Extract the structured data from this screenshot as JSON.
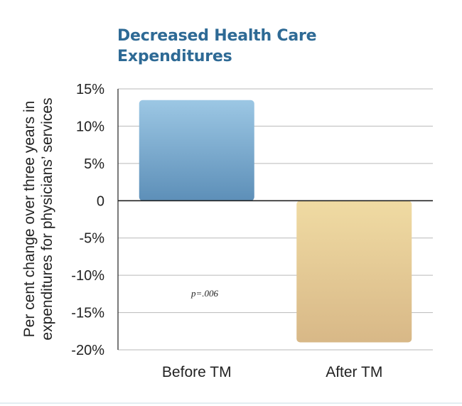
{
  "chart_data": {
    "type": "bar",
    "title": "Decreased Health Care Expenditures",
    "ylabel": [
      "Per cent change over three years in",
      "expenditures for physicians’ services"
    ],
    "xlabel": "",
    "categories": [
      "Before TM",
      "After TM"
    ],
    "values": [
      13.5,
      -19
    ],
    "ylim": [
      -20,
      15
    ],
    "yticks": [
      15,
      10,
      5,
      0,
      -5,
      -10,
      -15,
      -20
    ],
    "ytick_labels": [
      "15%",
      "10%",
      "5%",
      "0",
      "-5%",
      "-10%",
      "-15%",
      "-20%"
    ],
    "grid": true,
    "annotation": "p=.006",
    "colors": {
      "before_top": "#9cc7e4",
      "before_bottom": "#5d8fb8",
      "after_top": "#f0dba3",
      "after_bottom": "#d8b887",
      "title": "#2e6a95",
      "grid": "#b9b9b9",
      "zero_line": "#222222"
    }
  }
}
